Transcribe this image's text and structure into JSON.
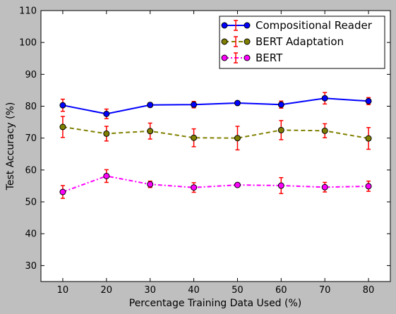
{
  "chart_data": {
    "type": "line",
    "title": "",
    "xlabel": "Percentage Training Data Used (%)",
    "ylabel": "Test Accuracy (%)",
    "xlim": [
      5,
      85
    ],
    "ylim": [
      25,
      110
    ],
    "xticks": [
      "10",
      "20",
      "30",
      "40",
      "50",
      "60",
      "70",
      "80"
    ],
    "yticks": [
      "30",
      "40",
      "50",
      "60",
      "70",
      "80",
      "90",
      "100",
      "110"
    ],
    "x": [
      10,
      20,
      30,
      40,
      50,
      60,
      70,
      80
    ],
    "grid": false,
    "legend_position": "upper right",
    "error_bar_color": "#ff0000",
    "series": [
      {
        "name": "Compositional Reader",
        "color": "#0000ff",
        "marker_color": "#0000ff",
        "linestyle": "solid",
        "values": [
          80.3,
          77.6,
          80.4,
          80.5,
          81.0,
          80.5,
          82.5,
          81.6
        ],
        "errors": [
          1.9,
          1.5,
          0.7,
          1.0,
          0.6,
          1.1,
          1.8,
          1.1
        ]
      },
      {
        "name": "BERT Adaptation",
        "color": "#808000",
        "marker_color": "#808000",
        "linestyle": "dashed",
        "values": [
          73.5,
          71.4,
          72.2,
          70.1,
          70.0,
          72.5,
          72.3,
          69.9
        ],
        "errors": [
          3.3,
          2.3,
          2.5,
          2.8,
          3.7,
          3.0,
          2.2,
          3.4
        ]
      },
      {
        "name": "BERT",
        "color": "#ff00ff",
        "marker_color": "#ff00ff",
        "linestyle": "dashdot",
        "values": [
          53.1,
          58.1,
          55.5,
          54.5,
          55.3,
          55.1,
          54.6,
          54.9
        ],
        "errors": [
          2.0,
          2.0,
          1.0,
          1.5,
          0.6,
          2.5,
          1.5,
          1.6
        ]
      }
    ]
  }
}
